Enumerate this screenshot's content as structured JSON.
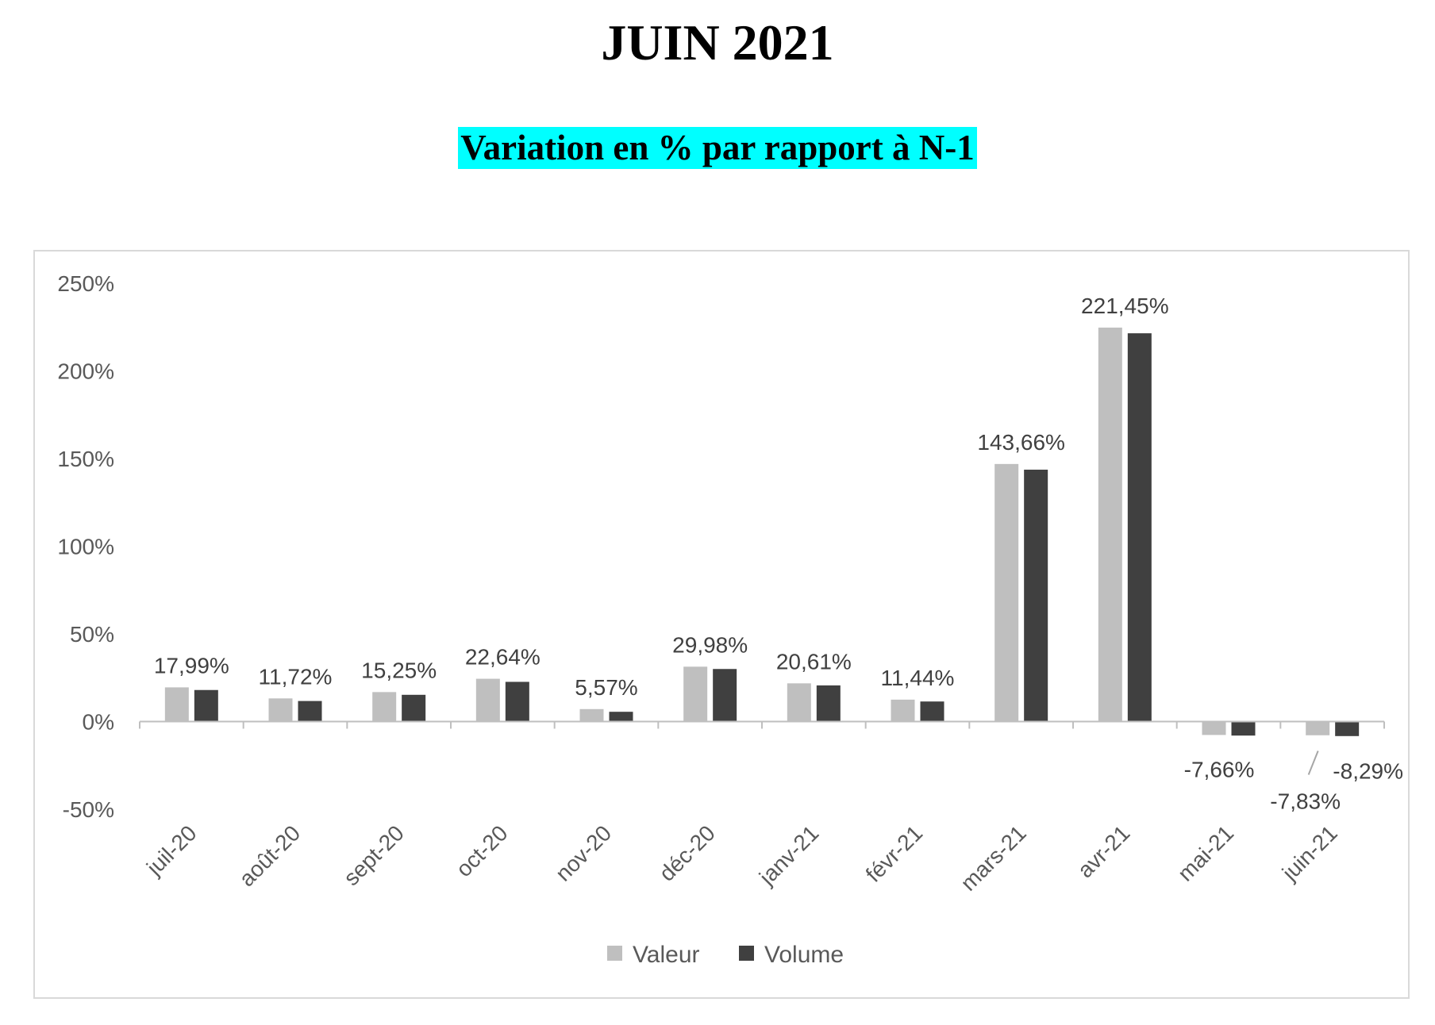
{
  "header": {
    "title": "JUIN 2021",
    "subtitle": "Variation en % par rapport à N-1",
    "subtitle_bg": "#00ffff"
  },
  "chart_data": {
    "type": "bar",
    "categories": [
      "juil-20",
      "août-20",
      "sept-20",
      "oct-20",
      "nov-20",
      "déc-20",
      "janv-21",
      "févr-21",
      "mars-21",
      "avr-21",
      "mai-21",
      "juin-21"
    ],
    "series": [
      {
        "name": "Valeur",
        "color": "#bfbfbf",
        "values": [
          19.5,
          13.2,
          16.8,
          24.4,
          7.1,
          31.3,
          21.8,
          12.5,
          146.9,
          224.7,
          -7.66,
          -7.83
        ]
      },
      {
        "name": "Volume",
        "color": "#404040",
        "values": [
          17.99,
          11.72,
          15.25,
          22.64,
          5.57,
          29.98,
          20.61,
          11.44,
          143.66,
          221.45,
          -8.0,
          -8.29
        ]
      }
    ],
    "data_labels": [
      {
        "category": "juil-20",
        "series": "Volume",
        "text": "17,99%"
      },
      {
        "category": "août-20",
        "series": "Volume",
        "text": "11,72%"
      },
      {
        "category": "sept-20",
        "series": "Volume",
        "text": "15,25%"
      },
      {
        "category": "oct-20",
        "series": "Volume",
        "text": "22,64%"
      },
      {
        "category": "nov-20",
        "series": "Volume",
        "text": "5,57%"
      },
      {
        "category": "déc-20",
        "series": "Volume",
        "text": "29,98%"
      },
      {
        "category": "janv-21",
        "series": "Volume",
        "text": "20,61%"
      },
      {
        "category": "févr-21",
        "series": "Volume",
        "text": "11,44%"
      },
      {
        "category": "mars-21",
        "series": "Volume",
        "text": "143,66%"
      },
      {
        "category": "avr-21",
        "series": "Volume",
        "text": "221,45%"
      },
      {
        "category": "mai-21",
        "series": "Valeur",
        "text": "-7,66%"
      },
      {
        "category": "juin-21",
        "series": "Volume",
        "text": "-8,29%"
      },
      {
        "category": "juin-21",
        "series": "Valeur",
        "text": "-7,83%"
      }
    ],
    "y_ticks": [
      "-50%",
      "0%",
      "50%",
      "100%",
      "150%",
      "200%",
      "250%"
    ],
    "y_tick_values": [
      -50,
      0,
      50,
      100,
      150,
      200,
      250
    ],
    "ylim": [
      -50,
      250
    ],
    "xlabel": "",
    "ylabel": "",
    "grid": false,
    "legend_position": "bottom-center"
  }
}
